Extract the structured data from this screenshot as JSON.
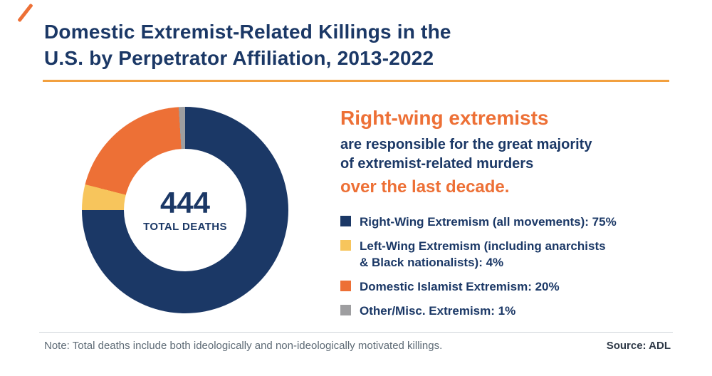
{
  "header": {
    "title_line1": "Domestic Extremist-Related Killings in the",
    "title_line2": "U.S. by Perpetrator Affiliation, 2013-2022"
  },
  "chart_data": {
    "type": "pie",
    "donut": true,
    "title": "Domestic Extremist-Related Killings in the U.S. by Perpetrator Affiliation, 2013-2022",
    "total_value": "444",
    "total_label": "TOTAL DEATHS",
    "legend_position": "right",
    "segments": [
      {
        "label": "Right-Wing Extremism (all movements)",
        "pct": 75,
        "color": "#1B3866"
      },
      {
        "label": "Left-Wing Extremism (including anarchists & Black nationalists)",
        "pct": 4,
        "color": "#F7C55C"
      },
      {
        "label": "Domestic Islamist Extremism",
        "pct": 20,
        "color": "#ED7036"
      },
      {
        "label": "Other/Misc. Extremism",
        "pct": 1,
        "color": "#9E9EA0"
      }
    ]
  },
  "callout": {
    "line1": "Right-wing extremists",
    "line2": "are responsible for the great majority",
    "line3": "of extremist-related murders",
    "line4": "over the last decade."
  },
  "legend": {
    "items": [
      {
        "lines": [
          "Right-Wing Extremism (all movements): 75%"
        ]
      },
      {
        "lines": [
          "Left-Wing Extremism (including anarchists",
          "& Black nationalists): 4%"
        ]
      },
      {
        "lines": [
          "Domestic Islamist Extremism: 20%"
        ]
      },
      {
        "lines": [
          "Other/Misc. Extremism: 1%"
        ]
      }
    ]
  },
  "footer": {
    "note": "Note: Total deaths include both ideologically and non-ideologically motivated killings.",
    "source": "Source: ADL"
  },
  "colors": {
    "navy": "#1B3866",
    "orange": "#ED7036",
    "gold": "#F7C55C",
    "gray": "#9E9EA0",
    "title_rule": "#F2A03F"
  }
}
